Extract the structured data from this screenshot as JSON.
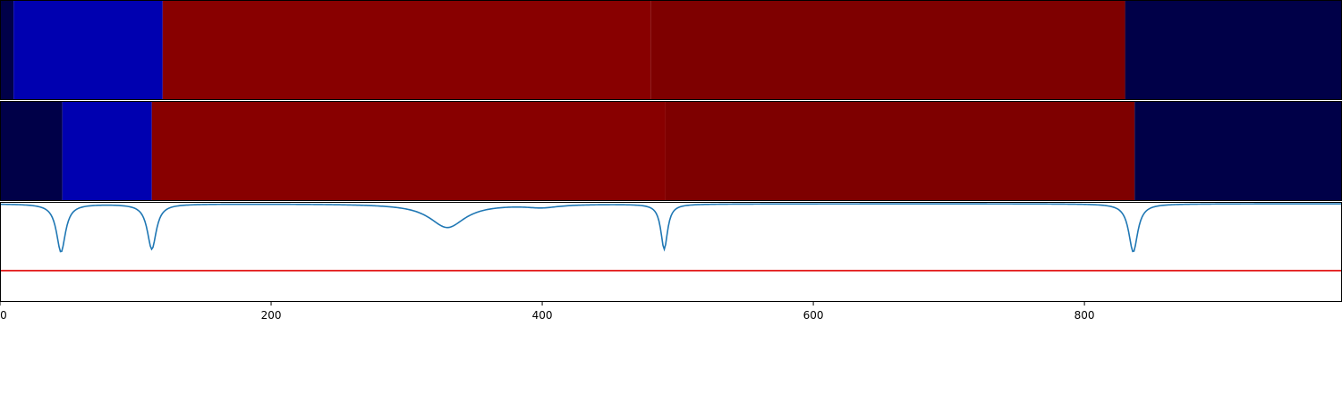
{
  "chart_data": {
    "type": "heatmap",
    "x_range": [
      0,
      990
    ],
    "xticks": [
      0,
      200,
      400,
      600,
      800
    ],
    "xtick_labels": [
      "0",
      "200",
      "400",
      "600",
      "800"
    ],
    "strips": [
      {
        "segments": [
          {
            "x0": 0,
            "x1": 10,
            "color": "#000048"
          },
          {
            "x0": 10,
            "x1": 120,
            "color": "#0000b0"
          },
          {
            "x0": 120,
            "x1": 480,
            "color": "#880000"
          },
          {
            "x0": 480,
            "x1": 830,
            "color": "#7e0000"
          },
          {
            "x0": 830,
            "x1": 990,
            "color": "#000048"
          }
        ]
      },
      {
        "segments": [
          {
            "x0": 0,
            "x1": 46,
            "color": "#000048"
          },
          {
            "x0": 46,
            "x1": 112,
            "color": "#0000b0"
          },
          {
            "x0": 112,
            "x1": 491,
            "color": "#880000"
          },
          {
            "x0": 491,
            "x1": 837,
            "color": "#7e0000"
          },
          {
            "x0": 837,
            "x1": 990,
            "color": "#000048"
          }
        ]
      }
    ],
    "signal": {
      "type": "line",
      "color": "#1f77b4",
      "ylim": [
        0,
        1
      ],
      "baseline": 0.99,
      "dips": [
        {
          "x": 45,
          "depth": 0.49,
          "width": 4
        },
        {
          "x": 112,
          "depth": 0.46,
          "width": 4
        },
        {
          "x": 330,
          "depth": 0.24,
          "width": 16
        },
        {
          "x": 400,
          "depth": 0.03,
          "width": 15
        },
        {
          "x": 490,
          "depth": 0.46,
          "width": 3
        },
        {
          "x": 836,
          "depth": 0.49,
          "width": 4
        }
      ],
      "threshold": {
        "value": 0.31,
        "color": "#e00000"
      }
    }
  }
}
